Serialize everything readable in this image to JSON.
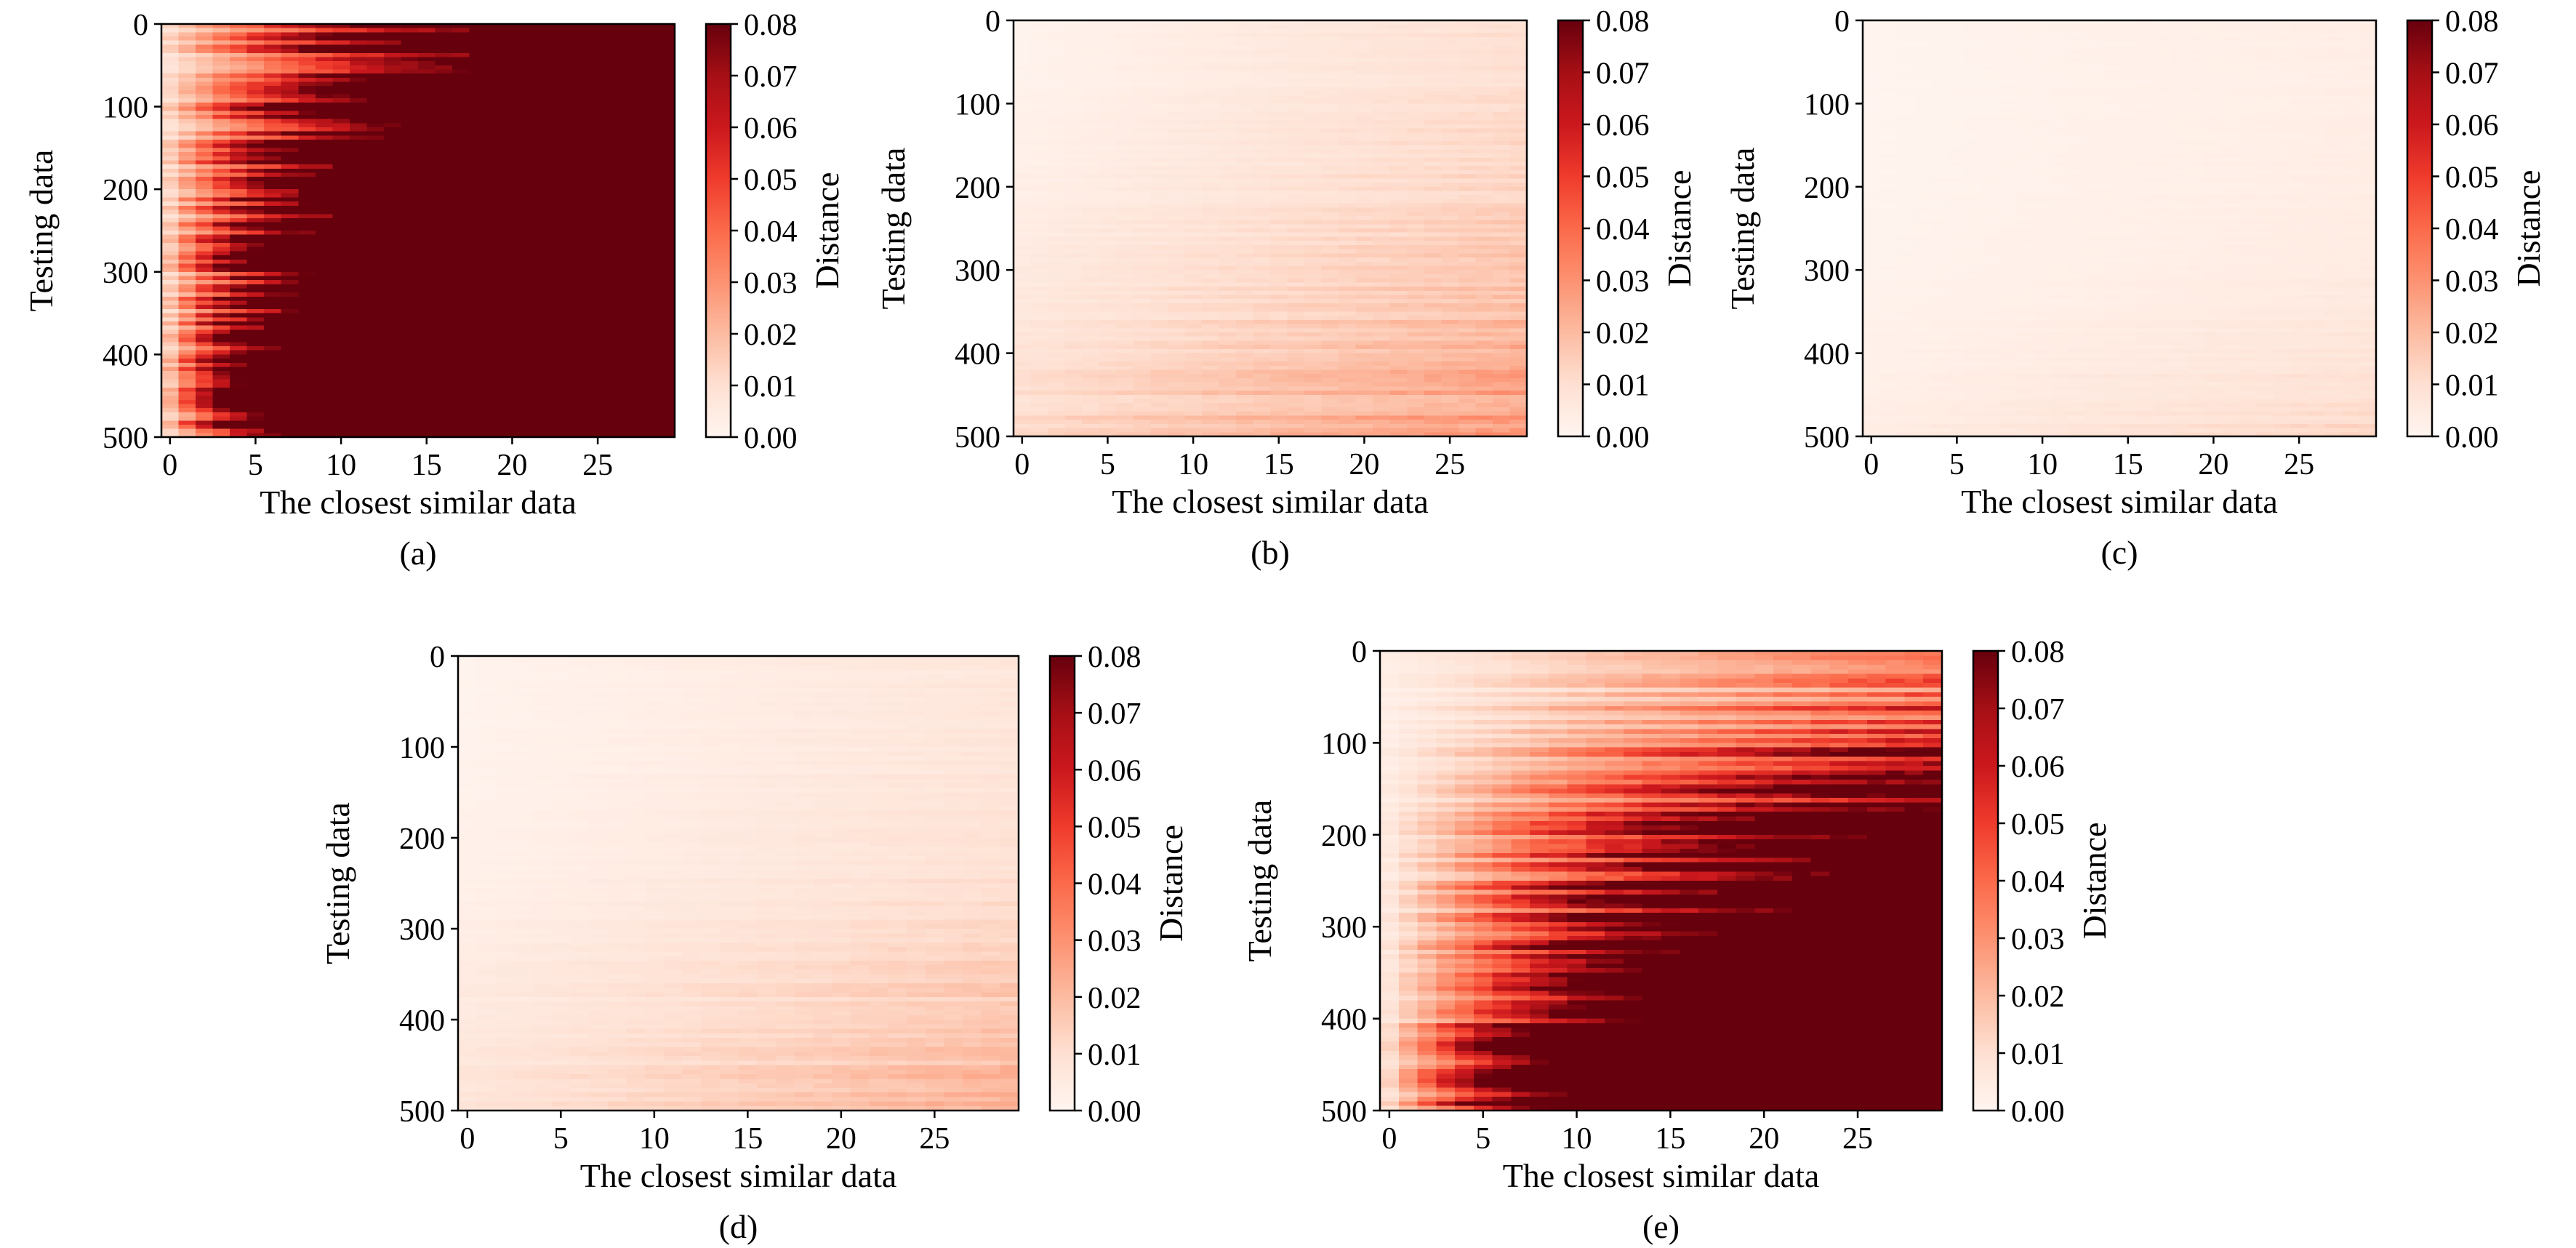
{
  "figure": {
    "colormap": [
      "#fff5f0",
      "#fee0d2",
      "#fcbba1",
      "#fc9272",
      "#fb6a4a",
      "#ef3b2c",
      "#cb181d",
      "#a50f15",
      "#67000d"
    ]
  },
  "chart_data": [
    {
      "type": "heatmap",
      "caption": "(a)",
      "xlabel": "The closest similar data",
      "ylabel": "Testing data",
      "colorbar_label": "Distance",
      "x_ticks": [
        "0",
        "5",
        "10",
        "15",
        "20",
        "25"
      ],
      "y_ticks": [
        "0",
        "100",
        "200",
        "300",
        "400",
        "500"
      ],
      "colorbar_ticks": [
        "0.00",
        "0.01",
        "0.02",
        "0.03",
        "0.04",
        "0.05",
        "0.06",
        "0.07",
        "0.08"
      ],
      "xlim": [
        0,
        29
      ],
      "ylim": [
        0,
        500
      ],
      "clim": [
        0,
        0.08
      ],
      "rows": 500,
      "cols": 30,
      "grid": false,
      "profile": {
        "top": {
          "base": 0.012,
          "rate": 0.0055
        },
        "bottom": {
          "base": 0.02,
          "rate": 0.02
        },
        "gamma": 0.9,
        "noise": 0.45
      }
    },
    {
      "type": "heatmap",
      "caption": "(b)",
      "xlabel": "The closest similar data",
      "ylabel": "Testing data",
      "colorbar_label": "Distance",
      "x_ticks": [
        "0",
        "5",
        "10",
        "15",
        "20",
        "25"
      ],
      "y_ticks": [
        "0",
        "100",
        "200",
        "300",
        "400",
        "500"
      ],
      "colorbar_ticks": [
        "0.00",
        "0.01",
        "0.02",
        "0.03",
        "0.04",
        "0.05",
        "0.06",
        "0.07",
        "0.08"
      ],
      "xlim": [
        0,
        29
      ],
      "ylim": [
        0,
        500
      ],
      "clim": [
        0,
        0.08
      ],
      "rows": 500,
      "cols": 30,
      "grid": false,
      "profile": {
        "top": {
          "base": 0.001,
          "rate": 0.0003
        },
        "bottom": {
          "base": 0.012,
          "rate": 0.0006
        },
        "gamma": 1.8,
        "noise": 0.2
      }
    },
    {
      "type": "heatmap",
      "caption": "(c)",
      "xlabel": "The closest similar data",
      "ylabel": "Testing data",
      "colorbar_label": "Distance",
      "x_ticks": [
        "0",
        "5",
        "10",
        "15",
        "20",
        "25"
      ],
      "y_ticks": [
        "0",
        "100",
        "200",
        "300",
        "400",
        "500"
      ],
      "colorbar_ticks": [
        "0.00",
        "0.01",
        "0.02",
        "0.03",
        "0.04",
        "0.05",
        "0.06",
        "0.07",
        "0.08"
      ],
      "xlim": [
        0,
        29
      ],
      "ylim": [
        0,
        500
      ],
      "clim": [
        0,
        0.08
      ],
      "rows": 500,
      "cols": 30,
      "grid": false,
      "profile": {
        "top": {
          "base": 0.0005,
          "rate": 0.0001
        },
        "bottom": {
          "base": 0.004,
          "rate": 0.0003
        },
        "gamma": 3.5,
        "noise": 0.15
      }
    },
    {
      "type": "heatmap",
      "caption": "(d)",
      "xlabel": "The closest similar data",
      "ylabel": "Testing data",
      "colorbar_label": "Distance",
      "x_ticks": [
        "0",
        "5",
        "10",
        "15",
        "20",
        "25"
      ],
      "y_ticks": [
        "0",
        "100",
        "200",
        "300",
        "400",
        "500"
      ],
      "colorbar_ticks": [
        "0.00",
        "0.01",
        "0.02",
        "0.03",
        "0.04",
        "0.05",
        "0.06",
        "0.07",
        "0.08"
      ],
      "xlim": [
        0,
        29
      ],
      "ylim": [
        0,
        500
      ],
      "clim": [
        0,
        0.08
      ],
      "rows": 500,
      "cols": 30,
      "grid": false,
      "profile": {
        "top": {
          "base": 0.001,
          "rate": 0.0002
        },
        "bottom": {
          "base": 0.008,
          "rate": 0.0005
        },
        "gamma": 2.0,
        "noise": 0.2
      }
    },
    {
      "type": "heatmap",
      "caption": "(e)",
      "xlabel": "The closest similar data",
      "ylabel": "Testing data",
      "colorbar_label": "Distance",
      "x_ticks": [
        "0",
        "5",
        "10",
        "15",
        "20",
        "25"
      ],
      "y_ticks": [
        "0",
        "100",
        "200",
        "300",
        "400",
        "500"
      ],
      "colorbar_ticks": [
        "0.00",
        "0.01",
        "0.02",
        "0.03",
        "0.04",
        "0.05",
        "0.06",
        "0.07",
        "0.08"
      ],
      "xlim": [
        0,
        29
      ],
      "ylim": [
        0,
        500
      ],
      "clim": [
        0,
        0.08
      ],
      "rows": 500,
      "cols": 30,
      "grid": false,
      "profile": {
        "top": {
          "base": 0.003,
          "rate": 0.0009
        },
        "bottom": {
          "base": 0.012,
          "rate": 0.012
        },
        "gamma": 1.4,
        "noise": 0.4
      }
    }
  ]
}
